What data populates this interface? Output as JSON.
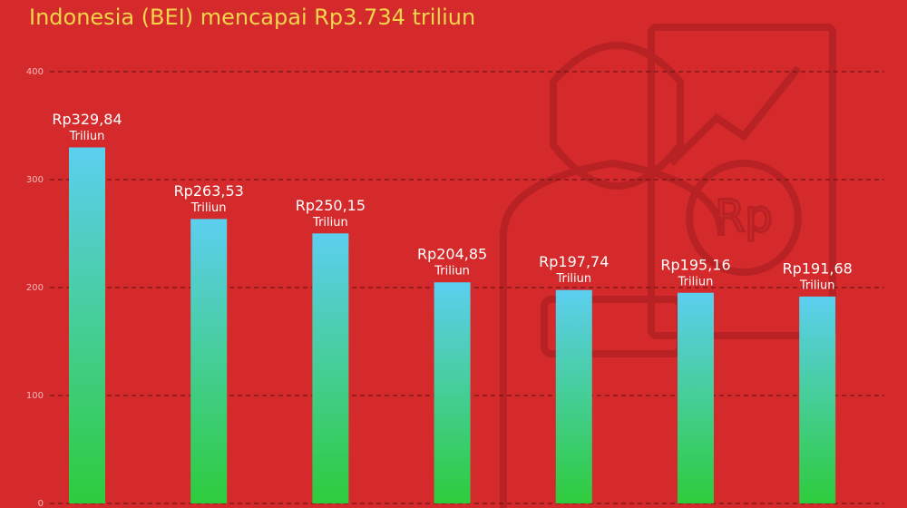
{
  "chart_data": {
    "type": "bar",
    "title": "Indonesia (BEI) mencapai Rp3.734 triliun",
    "values": [
      329.84,
      263.53,
      250.15,
      204.85,
      197.74,
      195.16,
      191.68
    ],
    "value_labels": [
      "Rp329,84",
      "Rp263,53",
      "Rp250,15",
      "Rp204,85",
      "Rp197,74",
      "Rp195,16",
      "Rp191,68"
    ],
    "value_unit": "Triliun",
    "color_top": "#5ccff0",
    "color_bottom": "#2ecc3c",
    "ylim": [
      0,
      400
    ],
    "yticks": [
      0,
      100,
      200,
      300,
      400
    ],
    "grid": true
  }
}
